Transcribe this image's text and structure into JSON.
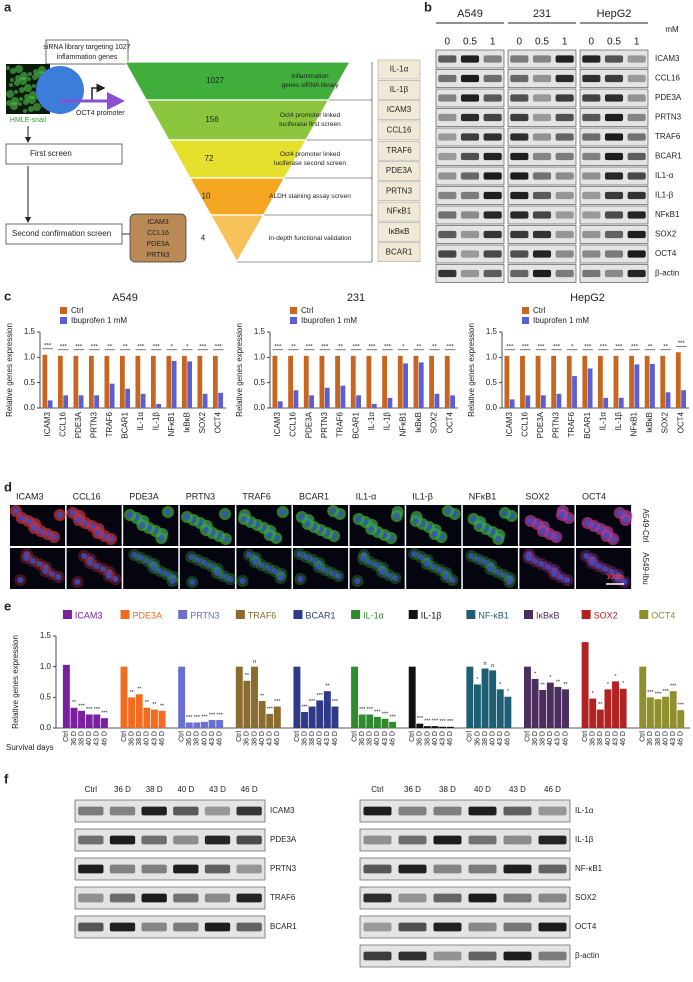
{
  "panel_labels": [
    "a",
    "b",
    "c",
    "d",
    "e",
    "f"
  ],
  "panel_a": {
    "library_title": [
      "siRNA library targeting 1027",
      "inflammation genes"
    ],
    "cell_label": "HMLE-snail",
    "promoter": "OCT4 promoter",
    "steps": [
      "First screen",
      "Second confirmation screen"
    ],
    "hits": [
      "ICAM3",
      "CCL16",
      "PDE3A",
      "PRTN3"
    ],
    "funnel": [
      {
        "count": 1027,
        "label": [
          "Inflammation",
          "genes siRNA library"
        ],
        "color": "#3fae3a"
      },
      {
        "count": 156,
        "label": [
          "Oct4 promoter linked",
          "luciferase first screen"
        ],
        "color": "#8cc63e"
      },
      {
        "count": 72,
        "label": [
          "Oct4 promoter linked",
          "luciferase second screen"
        ],
        "color": "#e4e02c"
      },
      {
        "count": 10,
        "label": [
          "ALDH staining assay screen"
        ],
        "color": "#f5a623"
      },
      {
        "count": 4,
        "label": [
          "In-depth functional validation"
        ],
        "color": "#f7c15a"
      }
    ],
    "genes": [
      "IL-1α",
      "IL-1β",
      "ICAM3",
      "CCL16",
      "TRAF6",
      "PDE3A",
      "PRTN3",
      "NFκB1",
      "IκBκB",
      "BCAR1"
    ]
  },
  "panel_b": {
    "unit": "mM",
    "cell_lines": [
      {
        "name": "A549",
        "doses": [
          "0",
          "0.5",
          "1"
        ]
      },
      {
        "name": "231",
        "doses": [
          "0",
          "0.5",
          "1"
        ]
      },
      {
        "name": "HepG2",
        "doses": [
          "0",
          "0.5",
          "1"
        ]
      }
    ],
    "proteins": [
      "ICAM3",
      "CCL16",
      "PDE3A",
      "PRTN3",
      "TRAF6",
      "BCAR1",
      "IL1-α",
      "IL1-β",
      "NFκB1",
      "SOX2",
      "OCT4",
      "β-actin"
    ]
  },
  "chart_data": [
    {
      "type": "bar",
      "title": "A549",
      "ylabel": "Relative genes expression",
      "categories": [
        "ICAM3",
        "CCL16",
        "PDE3A",
        "PRTN3",
        "TRAF6",
        "BCAR1",
        "IL-1α",
        "IL-1β",
        "NFκB1",
        "IκBκB",
        "SOX2",
        "OCT4"
      ],
      "series": [
        {
          "name": "Ctrl",
          "color": "#c8651e",
          "values": [
            1.05,
            1.03,
            1.03,
            1.03,
            1.03,
            1.03,
            1.03,
            1.03,
            1.03,
            1.03,
            1.03,
            1.03
          ]
        },
        {
          "name": "Ibuprofen 1 mM",
          "color": "#5b5fd2",
          "values": [
            0.15,
            0.25,
            0.25,
            0.25,
            0.48,
            0.38,
            0.28,
            0.08,
            0.93,
            0.92,
            0.28,
            0.3
          ]
        }
      ],
      "annotations": [
        "***",
        "***",
        "***",
        "***",
        "**",
        "**",
        "***",
        "***",
        "*",
        "*",
        "***",
        "***"
      ],
      "ylim": [
        0,
        1.5
      ],
      "yticks": [
        {
          "value": 0,
          "label": "0.0"
        },
        {
          "value": 0.5,
          "label": "0.5"
        },
        {
          "value": 1,
          "label": "1.0"
        },
        {
          "value": 1.5,
          "label": "1.5"
        }
      ]
    },
    {
      "type": "bar",
      "title": "231",
      "ylabel": "Relative genes expression",
      "categories": [
        "ICAM3",
        "CCL16",
        "PDE3A",
        "PRTN3",
        "TRAF6",
        "BCAR1",
        "IL-1α",
        "IL-1β",
        "NFκB1",
        "IκBκB",
        "SOX2",
        "OCT4"
      ],
      "series": [
        {
          "name": "Ctrl",
          "color": "#c8651e",
          "values": [
            1.03,
            1.03,
            1.03,
            1.03,
            1.03,
            1.03,
            1.03,
            1.03,
            1.03,
            1.03,
            1.03,
            1.03
          ]
        },
        {
          "name": "Ibuprofen 1 mM",
          "color": "#5b5fd2",
          "values": [
            0.13,
            0.35,
            0.25,
            0.4,
            0.44,
            0.25,
            0.08,
            0.2,
            0.88,
            0.9,
            0.28,
            0.25
          ]
        }
      ],
      "annotations": [
        "***",
        "**",
        "***",
        "***",
        "**",
        "***",
        "***",
        "***",
        "*",
        "**",
        "**",
        "***"
      ],
      "ylim": [
        0,
        1.5
      ],
      "yticks": [
        {
          "value": 0,
          "label": "0.0"
        },
        {
          "value": 0.5,
          "label": "0.5"
        },
        {
          "value": 1,
          "label": "1.0"
        },
        {
          "value": 1.5,
          "label": "1.5"
        }
      ]
    },
    {
      "type": "bar",
      "title": "HepG2",
      "ylabel": "Relative genes expression",
      "categories": [
        "ICAM3",
        "CCL16",
        "PDE3A",
        "PRTN3",
        "TRAF6",
        "BCAR1",
        "IL-1α",
        "IL-1β",
        "NFκB1",
        "IκBκB",
        "SOX2",
        "OCT4"
      ],
      "series": [
        {
          "name": "Ctrl",
          "color": "#c8651e",
          "values": [
            1.03,
            1.03,
            1.03,
            1.03,
            1.03,
            1.03,
            1.03,
            1.03,
            1.03,
            1.03,
            1.03,
            1.1
          ]
        },
        {
          "name": "Ibuprofen 1 mM",
          "color": "#5b5fd2",
          "values": [
            0.17,
            0.25,
            0.25,
            0.28,
            0.63,
            0.78,
            0.2,
            0.2,
            0.86,
            0.87,
            0.31,
            0.35
          ]
        }
      ],
      "annotations": [
        "***",
        "***",
        "***",
        "***",
        "*",
        "***",
        "***",
        "***",
        "***",
        "**",
        "**",
        "***"
      ],
      "ylim": [
        0,
        1.5
      ],
      "yticks": [
        {
          "value": 0,
          "label": "0.0"
        },
        {
          "value": 0.5,
          "label": "0.5"
        },
        {
          "value": 1,
          "label": "1.0"
        },
        {
          "value": 1.5,
          "label": "1.5"
        }
      ]
    },
    {
      "type": "grouped-bar",
      "ylabel": "Relative genes expression",
      "xlabel": "Survival days",
      "categories": [
        "Ctrl",
        "36 D",
        "38 D",
        "40 D",
        "43 D",
        "46 D"
      ],
      "series": [
        {
          "name": "ICAM3",
          "color": "#7b1fa2",
          "values": [
            1.03,
            0.33,
            0.28,
            0.22,
            0.22,
            0.16
          ],
          "annotations": [
            "**",
            "***",
            "***",
            "***",
            "***"
          ]
        },
        {
          "name": "PDE3A",
          "color": "#f26b21",
          "values": [
            1.0,
            0.5,
            0.55,
            0.33,
            0.3,
            0.28
          ],
          "annotations": [
            "**",
            "**",
            "**",
            "**",
            "**"
          ]
        },
        {
          "name": "PRTN3",
          "color": "#6a6fd0",
          "values": [
            1.0,
            0.09,
            0.09,
            0.1,
            0.13,
            0.13
          ],
          "annotations": [
            "***",
            "***",
            "***",
            "***",
            "***"
          ]
        },
        {
          "name": "TRAF6",
          "color": "#8b6b2e",
          "values": [
            1.0,
            0.77,
            1.0,
            0.44,
            0.23,
            0.35
          ],
          "annotations": [
            "**",
            "n",
            "**",
            "***",
            "***"
          ]
        },
        {
          "name": "BCAR1",
          "color": "#2e3a87",
          "values": [
            1.0,
            0.26,
            0.35,
            0.45,
            0.6,
            0.35
          ],
          "annotations": [
            "***",
            "***",
            "***",
            "**",
            "***"
          ]
        },
        {
          "name": "IL-1α",
          "color": "#2e8b2e",
          "values": [
            1.0,
            0.22,
            0.22,
            0.18,
            0.15,
            0.1
          ],
          "annotations": [
            "***",
            "***",
            "***",
            "***",
            "***"
          ]
        },
        {
          "name": "IL-1β",
          "color": "#111111",
          "values": [
            1.0,
            0.07,
            0.03,
            0.03,
            0.02,
            0.02
          ],
          "annotations": [
            "***",
            "***",
            "***",
            "***",
            "***"
          ]
        },
        {
          "name": "NF-κB1",
          "color": "#1f5f73",
          "values": [
            1.0,
            0.71,
            0.97,
            0.94,
            0.63,
            0.51
          ],
          "annotations": [
            "*",
            "n",
            "n",
            "*",
            "*"
          ]
        },
        {
          "name": "IκBκB",
          "color": "#4b2d5e",
          "values": [
            1.0,
            0.8,
            0.62,
            0.74,
            0.67,
            0.63
          ],
          "annotations": [
            "*",
            "**",
            "*",
            "**",
            "**"
          ]
        },
        {
          "name": "SOX2",
          "color": "#b22222",
          "values": [
            1.4,
            0.48,
            0.3,
            0.63,
            0.76,
            0.64
          ],
          "annotations": [
            "*",
            "**",
            "*",
            "*",
            "*"
          ]
        },
        {
          "name": "OCT4",
          "color": "#8f8f2e",
          "values": [
            1.0,
            0.5,
            0.47,
            0.51,
            0.6,
            0.29
          ],
          "annotations": [
            "***",
            "***",
            "***",
            "***",
            "***"
          ]
        }
      ],
      "ylim": [
        0,
        1.5
      ],
      "yticks": [
        {
          "value": 0,
          "label": "0.0"
        },
        {
          "value": 0.5,
          "label": "0.5"
        },
        {
          "value": 1,
          "label": "1.0"
        },
        {
          "value": 1.5,
          "label": "1.5"
        }
      ]
    }
  ],
  "panel_d": {
    "markers": [
      {
        "name": "ICAM3",
        "color": "#c0303a"
      },
      {
        "name": "CCL16",
        "color": "#c0303a"
      },
      {
        "name": "PDE3A",
        "color": "#3aa53a"
      },
      {
        "name": "PRTN3",
        "color": "#3aa53a"
      },
      {
        "name": "TRAF6",
        "color": "#3aa53a"
      },
      {
        "name": "BCAR1",
        "color": "#3aa53a"
      },
      {
        "name": "IL1-α",
        "color": "#3aa53a"
      },
      {
        "name": "IL1-β",
        "color": "#3aa53a"
      },
      {
        "name": "NFκB1",
        "color": "#3aa53a"
      },
      {
        "name": "SOX2",
        "color": "#b03a8c"
      },
      {
        "name": "OCT4",
        "color": "#b03a8c"
      }
    ],
    "rows": [
      "A549-Ctrl",
      "A549-Ibu"
    ],
    "scale": "10um"
  },
  "panel_f": {
    "lanes": [
      "Ctrl",
      "36 D",
      "38 D",
      "40 D",
      "43 D",
      "46 D"
    ],
    "left_proteins": [
      "ICAM3",
      "PDE3A",
      "PRTN3",
      "TRAF6",
      "BCAR1"
    ],
    "right_proteins": [
      "IL-1α",
      "IL-1β",
      "NF-κB1",
      "SOX2",
      "OCT4",
      "β-actin"
    ]
  }
}
